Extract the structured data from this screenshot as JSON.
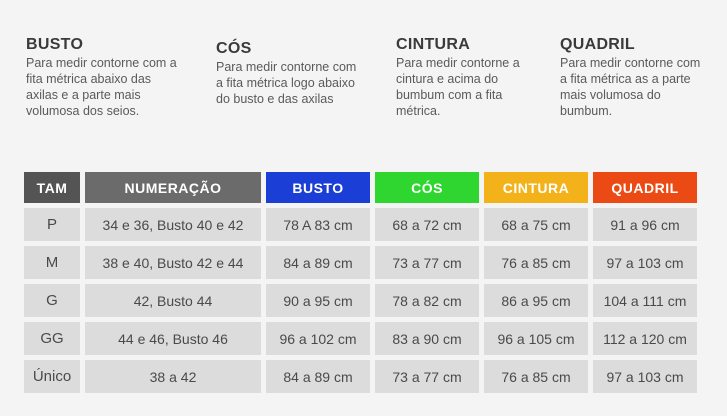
{
  "guides": [
    {
      "title": "BUSTO",
      "text": "Para medir contorne com a fita métrica abaixo das axilas e a parte mais volumosa dos seios."
    },
    {
      "title": "CÓS",
      "text": "Para medir contorne com a fita métrica logo abaixo do busto e das axilas"
    },
    {
      "title": "CINTURA",
      "text": "Para medir contorne a cintura e acima do bumbum com a fita métrica."
    },
    {
      "title": "QUADRIL",
      "text": "Para medir contorne com a fita métrica as a parte mais volumosa do bumbum."
    }
  ],
  "table": {
    "headers": [
      {
        "label": "TAM",
        "color": "#545454"
      },
      {
        "label": "NUMERAÇÃO",
        "color": "#6b6b6b"
      },
      {
        "label": "BUSTO",
        "color": "#1a3ed6"
      },
      {
        "label": "CÓS",
        "color": "#2fd62f"
      },
      {
        "label": "CINTURA",
        "color": "#f3b21a"
      },
      {
        "label": "QUADRIL",
        "color": "#ec4a14"
      }
    ],
    "rows": [
      [
        "P",
        "34 e 36, Busto 40 e 42",
        "78 A 83 cm",
        "68 a 72 cm",
        "68 a 75 cm",
        "91 a 96 cm"
      ],
      [
        "M",
        "38 e 40, Busto 42 e 44",
        "84 a 89 cm",
        "73 a 77 cm",
        "76 a 85 cm",
        "97 a 103 cm"
      ],
      [
        "G",
        "42, Busto 44",
        "90 a 95 cm",
        "78 a 82 cm",
        "86 a 95 cm",
        "104 a 111 cm"
      ],
      [
        "GG",
        "44 e 46, Busto 46",
        "96 a 102 cm",
        "83 a 90 cm",
        "96 a 105 cm",
        "112 a 120 cm"
      ],
      [
        "Único",
        "38 a 42",
        "84 a 89 cm",
        "73 a 77 cm",
        "76 a 85 cm",
        "97 a 103 cm"
      ]
    ]
  }
}
